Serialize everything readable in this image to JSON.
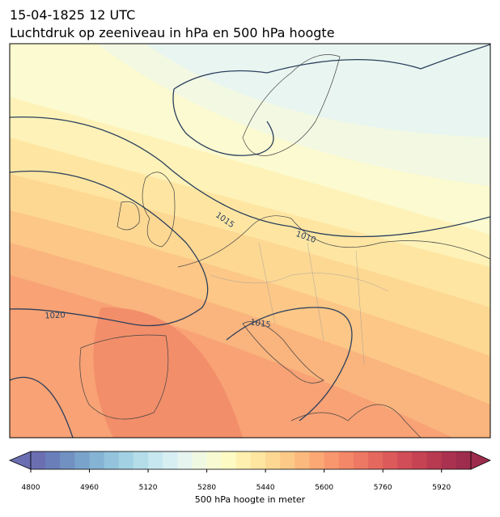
{
  "header": {
    "title_line1": "15-04-1825 12 UTC",
    "title_line2": "Luchtdruk op zeeniveau in hPa en 500 hPa hoogte"
  },
  "map": {
    "isobar_labels": [
      1015,
      1010,
      1020,
      1015
    ]
  },
  "colorbar": {
    "label": "500 hPa hoogte in meter",
    "range": [
      4800,
      6000
    ],
    "ticks": [
      4800,
      4960,
      5120,
      5280,
      5440,
      5600,
      5760,
      5920
    ],
    "colors": [
      "#6b6fb2",
      "#6a7fba",
      "#7191c2",
      "#7aa3cb",
      "#85b3d4",
      "#93c3dd",
      "#a3d1e4",
      "#b4dde9",
      "#c6e7ef",
      "#d7eff3",
      "#e6f5f0",
      "#f0f8e2",
      "#f8fbd2",
      "#fefac4",
      "#fff0b0",
      "#fee5a0",
      "#fdd892",
      "#fdc987",
      "#fcb97d",
      "#fba875",
      "#f8976e",
      "#f38768",
      "#ed7863",
      "#e4685e",
      "#dc5a5a",
      "#d14d57",
      "#c54353",
      "#b83a50",
      "#aa3250",
      "#9d2c4d"
    ]
  }
}
